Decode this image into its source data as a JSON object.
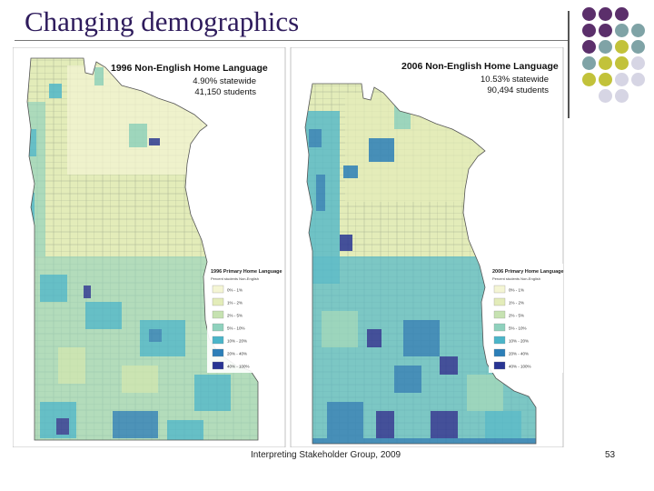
{
  "slide": {
    "title": "Changing demographics",
    "footer": "Interpreting Stakeholder Group, 2009",
    "page_number": "53"
  },
  "map_1996": {
    "title": "1996 Non-English Home Language",
    "statewide": "4.90% statewide",
    "students": "41,150 students",
    "legend_title": "1996 Primary Home Language",
    "legend_subtitle": "Percent students Non-English",
    "legend_items": [
      "0% - 1%",
      "1% - 2%",
      "2% - 5%",
      "5% - 10%",
      "10% - 20%",
      "20% - 40%",
      "40% - 100%"
    ]
  },
  "map_2006": {
    "title": "2006 Non-English Home Language",
    "statewide": "10.53% statewide",
    "students": "90,494 students",
    "legend_title": "2006 Primary Home Language",
    "legend_subtitle": "Percent students Non-English",
    "legend_items": [
      "0% - 1%",
      "1% - 2%",
      "2% - 5%",
      "5% - 10%",
      "10% - 20%",
      "20% - 40%",
      "40% - 100%"
    ]
  },
  "colors": {
    "title": "#2e1b5c",
    "legend_scale": [
      "#f4f5d4",
      "#e3ecb9",
      "#c6e2b1",
      "#8fd1bd",
      "#4bb5c9",
      "#2c7fb8",
      "#283593"
    ],
    "deco_purple": "#5b2f6b",
    "deco_teal": "#7fa3a6",
    "deco_olive": "#c2c23a",
    "deco_lavender": "#d6d5e4"
  }
}
